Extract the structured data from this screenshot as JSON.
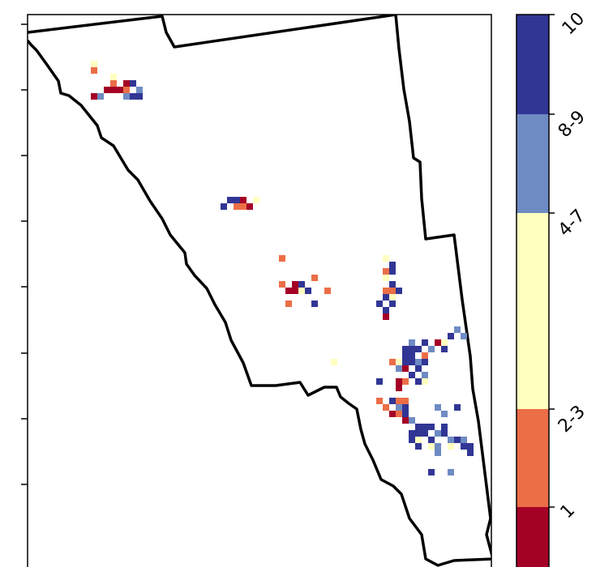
{
  "legend": {
    "classes": [
      {
        "label": "1",
        "color": "#a50026"
      },
      {
        "label": "2-3",
        "color": "#eb6e47"
      },
      {
        "label": "4-7",
        "color": "#ffffc0"
      },
      {
        "label": "8-9",
        "color": "#6e8bc3"
      },
      {
        "label": "10",
        "color": "#313695"
      }
    ]
  },
  "map": {
    "boundary_color": "#000000",
    "grid_cell_classes": [
      "1",
      "2-3",
      "4-7",
      "8-9",
      "10"
    ]
  }
}
